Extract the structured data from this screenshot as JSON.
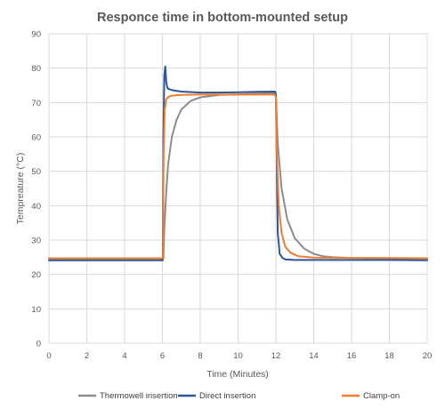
{
  "chart_data": {
    "type": "line",
    "title": "Responce time in bottom-mounted setup",
    "xlabel": "Time (Minutes)",
    "ylabel": "Tempreature (°C)",
    "xlim": [
      0,
      20
    ],
    "ylim": [
      0,
      90
    ],
    "x_ticks": [
      0,
      2,
      4,
      6,
      8,
      10,
      12,
      14,
      16,
      18,
      20
    ],
    "y_ticks": [
      0,
      10,
      20,
      30,
      40,
      50,
      60,
      70,
      80,
      90
    ],
    "grid": true,
    "legend_position": "bottom",
    "series": [
      {
        "name": "Thermowell insertion",
        "color": "#8c8c8c",
        "x": [
          0,
          6.05,
          6.1,
          6.2,
          6.3,
          6.5,
          6.75,
          7.0,
          7.5,
          8.0,
          9.0,
          10.0,
          11.0,
          11.95,
          12.0,
          12.1,
          12.3,
          12.6,
          13.0,
          13.5,
          14.0,
          14.5,
          15.0,
          16.0,
          18.0,
          20.0
        ],
        "y": [
          24.6,
          24.6,
          33,
          44,
          52,
          60,
          65,
          68,
          70.5,
          71.5,
          72.2,
          72.4,
          72.6,
          72.8,
          72.0,
          58,
          45,
          36,
          30.5,
          27.5,
          26.0,
          25.3,
          25.0,
          24.8,
          24.7,
          24.6
        ]
      },
      {
        "name": "Direct insertion",
        "color": "#2f5597",
        "x": [
          0,
          6.02,
          6.05,
          6.1,
          6.15,
          6.2,
          6.25,
          6.3,
          6.4,
          6.6,
          7.0,
          8.0,
          9.0,
          10.0,
          11.0,
          11.95,
          12.0,
          12.05,
          12.1,
          12.2,
          12.35,
          12.5,
          13.0,
          14.0,
          16.0,
          18.0,
          20.0
        ],
        "y": [
          24.1,
          24.1,
          60,
          78,
          80.5,
          76,
          74.5,
          74.0,
          73.8,
          73.5,
          73.2,
          72.9,
          72.9,
          73.0,
          73.1,
          73.2,
          72.5,
          50,
          32,
          26,
          24.8,
          24.4,
          24.2,
          24.2,
          24.2,
          24.2,
          24.1
        ]
      },
      {
        "name": "Clamp-on",
        "color": "#ed7d31",
        "x": [
          0,
          6.03,
          6.06,
          6.12,
          6.2,
          6.3,
          6.5,
          7.0,
          8.0,
          9.0,
          10.0,
          11.0,
          11.95,
          12.0,
          12.05,
          12.15,
          12.3,
          12.5,
          12.8,
          13.2,
          14.0,
          16.0,
          18.0,
          20.0
        ],
        "y": [
          24.7,
          24.7,
          55,
          68,
          71,
          71.6,
          72.0,
          72.2,
          72.3,
          72.3,
          72.3,
          72.3,
          72.3,
          71.5,
          55,
          40,
          32,
          28,
          26.2,
          25.3,
          24.9,
          24.8,
          24.8,
          24.7
        ]
      }
    ]
  }
}
